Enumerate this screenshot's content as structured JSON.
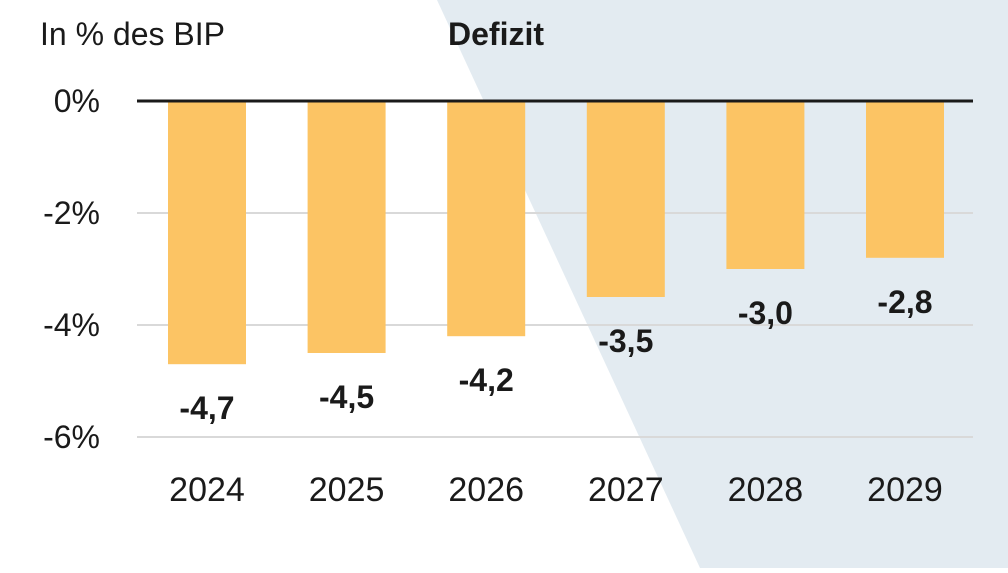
{
  "chart_data": {
    "type": "bar",
    "title": "Defizit",
    "ylabel": "In % des BIP",
    "categories": [
      "2024",
      "2025",
      "2026",
      "2027",
      "2028",
      "2029"
    ],
    "values": [
      -4.7,
      -4.5,
      -4.2,
      -3.5,
      -3.0,
      -2.8
    ],
    "value_labels": [
      "-4,7",
      "-4,5",
      "-4,2",
      "-3,5",
      "-3,0",
      "-2,8"
    ],
    "yticks": [
      0,
      -2,
      -4,
      -6
    ],
    "ytick_labels": [
      "0%",
      "-2%",
      "-4%",
      "-6%"
    ],
    "ylim": [
      -6,
      0
    ],
    "grid": true,
    "colors": {
      "bar": "#fcc464",
      "background_band": "#e3ebf1",
      "gridline": "#d9d9d9",
      "zero_line": "#1a1a1a",
      "text": "#1a1a1a"
    }
  }
}
